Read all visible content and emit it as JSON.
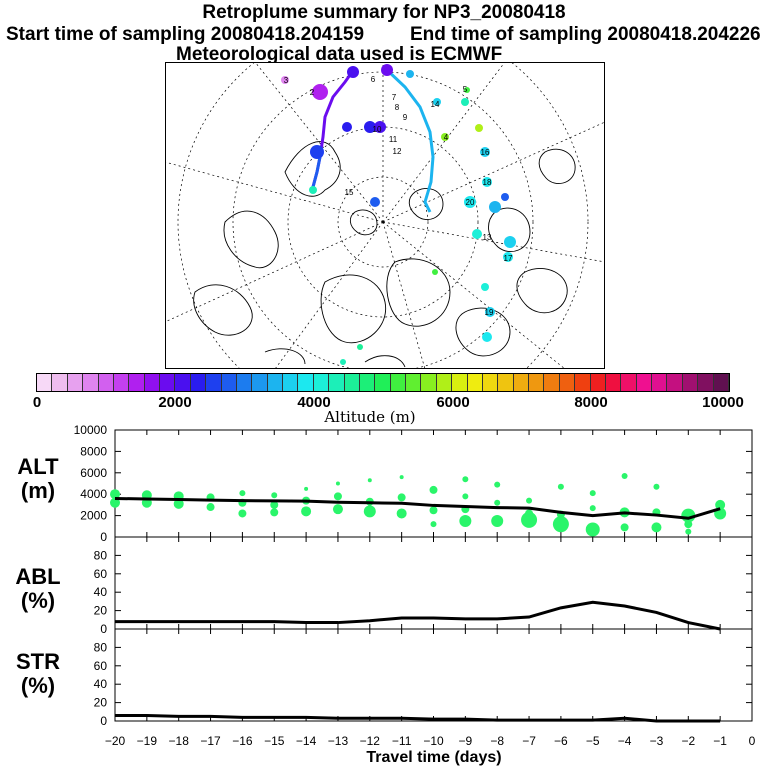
{
  "header": {
    "title": "Retroplume summary for NP3_20080418",
    "start": "Start time of sampling 20080418.204159",
    "end": "End time of sampling 20080418.204226",
    "met": "Meteorological data used is ECMWF"
  },
  "colorbar": {
    "title": "Altitude (m)",
    "labels": [
      "0",
      "2000",
      "4000",
      "6000",
      "8000",
      "10000"
    ],
    "colors": [
      "#f7d9f7",
      "#efbdef",
      "#e7a1ef",
      "#df84ef",
      "#d260ef",
      "#c440ef",
      "#b020ef",
      "#9010ef",
      "#6b0cef",
      "#4a10ef",
      "#2a1cef",
      "#1e40ef",
      "#1e5cef",
      "#1c7cef",
      "#1c98ef",
      "#1cb4ef",
      "#1cd0ef",
      "#1ce8ef",
      "#1cefd8",
      "#1cefb8",
      "#1cef98",
      "#1cef78",
      "#20ef58",
      "#40ef40",
      "#60ef30",
      "#88ef20",
      "#b0ef18",
      "#d8ef10",
      "#efec10",
      "#efd810",
      "#efc410",
      "#efac10",
      "#ef9810",
      "#ef7c10",
      "#ef6010",
      "#ef4010",
      "#ef2020",
      "#ef1040",
      "#ef1068",
      "#ef1090",
      "#e01090",
      "#c41080",
      "#a01070",
      "#801060",
      "#601050"
    ]
  },
  "chart_data": [
    {
      "type": "scatter",
      "panel": "ALT",
      "ylabel_line1": "ALT",
      "ylabel_line2": "(m)",
      "ylim": [
        0,
        10000
      ],
      "yticks": [
        "0",
        "2000",
        "4000",
        "6000",
        "8000",
        "10000"
      ],
      "xlim": [
        -20,
        0
      ],
      "line": {
        "x": [
          -20,
          -19,
          -18,
          -17,
          -16,
          -15,
          -14,
          -13,
          -12,
          -11,
          -10,
          -9,
          -8,
          -7,
          -6,
          -5,
          -4,
          -3,
          -2,
          -1
        ],
        "y": [
          3600,
          3550,
          3500,
          3450,
          3400,
          3380,
          3350,
          3250,
          3200,
          3150,
          2950,
          2850,
          2750,
          2700,
          2300,
          2000,
          2250,
          2050,
          1750,
          2650
        ]
      },
      "points": [
        {
          "x": -20,
          "y": 4000,
          "s": 5
        },
        {
          "x": -20,
          "y": 3200,
          "s": 5
        },
        {
          "x": -19,
          "y": 3900,
          "s": 5
        },
        {
          "x": -19,
          "y": 3200,
          "s": 5
        },
        {
          "x": -18,
          "y": 3800,
          "s": 5
        },
        {
          "x": -18,
          "y": 3100,
          "s": 5
        },
        {
          "x": -17,
          "y": 3700,
          "s": 4
        },
        {
          "x": -17,
          "y": 2800,
          "s": 4
        },
        {
          "x": -16,
          "y": 4100,
          "s": 3
        },
        {
          "x": -16,
          "y": 3200,
          "s": 4
        },
        {
          "x": -16,
          "y": 2200,
          "s": 4
        },
        {
          "x": -15,
          "y": 3900,
          "s": 3
        },
        {
          "x": -15,
          "y": 3000,
          "s": 4
        },
        {
          "x": -15,
          "y": 2300,
          "s": 4
        },
        {
          "x": -14,
          "y": 4500,
          "s": 2
        },
        {
          "x": -14,
          "y": 3400,
          "s": 4
        },
        {
          "x": -14,
          "y": 2400,
          "s": 5
        },
        {
          "x": -13,
          "y": 5000,
          "s": 2
        },
        {
          "x": -13,
          "y": 3800,
          "s": 4
        },
        {
          "x": -13,
          "y": 2600,
          "s": 5
        },
        {
          "x": -12,
          "y": 5300,
          "s": 2
        },
        {
          "x": -12,
          "y": 3300,
          "s": 4
        },
        {
          "x": -12,
          "y": 2400,
          "s": 6
        },
        {
          "x": -11,
          "y": 5600,
          "s": 2
        },
        {
          "x": -11,
          "y": 3700,
          "s": 4
        },
        {
          "x": -11,
          "y": 2200,
          "s": 5
        },
        {
          "x": -10,
          "y": 4400,
          "s": 4
        },
        {
          "x": -10,
          "y": 2500,
          "s": 4
        },
        {
          "x": -10,
          "y": 1200,
          "s": 3
        },
        {
          "x": -9,
          "y": 5400,
          "s": 3
        },
        {
          "x": -9,
          "y": 3800,
          "s": 3
        },
        {
          "x": -9,
          "y": 2600,
          "s": 4
        },
        {
          "x": -9,
          "y": 1500,
          "s": 6
        },
        {
          "x": -8,
          "y": 4900,
          "s": 3
        },
        {
          "x": -8,
          "y": 3200,
          "s": 3
        },
        {
          "x": -8,
          "y": 1500,
          "s": 6
        },
        {
          "x": -7,
          "y": 3400,
          "s": 3
        },
        {
          "x": -7,
          "y": 2200,
          "s": 4
        },
        {
          "x": -7,
          "y": 1600,
          "s": 8
        },
        {
          "x": -6,
          "y": 4700,
          "s": 3
        },
        {
          "x": -6,
          "y": 2100,
          "s": 4
        },
        {
          "x": -6,
          "y": 1200,
          "s": 8
        },
        {
          "x": -5,
          "y": 4100,
          "s": 3
        },
        {
          "x": -5,
          "y": 2700,
          "s": 3
        },
        {
          "x": -5,
          "y": 700,
          "s": 7
        },
        {
          "x": -4,
          "y": 5700,
          "s": 3
        },
        {
          "x": -4,
          "y": 2300,
          "s": 5
        },
        {
          "x": -4,
          "y": 900,
          "s": 4
        },
        {
          "x": -3,
          "y": 4700,
          "s": 3
        },
        {
          "x": -3,
          "y": 2300,
          "s": 4
        },
        {
          "x": -3,
          "y": 900,
          "s": 5
        },
        {
          "x": -2,
          "y": 2000,
          "s": 7
        },
        {
          "x": -2,
          "y": 1200,
          "s": 4
        },
        {
          "x": -2,
          "y": 500,
          "s": 3
        },
        {
          "x": -1,
          "y": 3000,
          "s": 5
        },
        {
          "x": -1,
          "y": 2200,
          "s": 6
        }
      ]
    },
    {
      "type": "line",
      "panel": "ABL",
      "ylabel_line1": "ABL",
      "ylabel_line2": "(%)",
      "ylim": [
        0,
        100
      ],
      "yticks": [
        "0",
        "20",
        "40",
        "60",
        "80"
      ],
      "xlim": [
        -20,
        0
      ],
      "x": [
        -20,
        -19,
        -18,
        -17,
        -16,
        -15,
        -14,
        -13,
        -12,
        -11,
        -10,
        -9,
        -8,
        -7,
        -6,
        -5,
        -4,
        -3,
        -2,
        -1
      ],
      "y": [
        8,
        8,
        8,
        8,
        8,
        8,
        7,
        7,
        9,
        12,
        12,
        11,
        11,
        13,
        23,
        29,
        25,
        18,
        7,
        0
      ]
    },
    {
      "type": "line",
      "panel": "STR",
      "ylabel_line1": "STR",
      "ylabel_line2": "(%)",
      "ylim": [
        0,
        100
      ],
      "yticks": [
        "0",
        "20",
        "40",
        "60",
        "80"
      ],
      "xlim": [
        -20,
        0
      ],
      "x": [
        -20,
        -19,
        -18,
        -17,
        -16,
        -15,
        -14,
        -13,
        -12,
        -11,
        -10,
        -9,
        -8,
        -7,
        -6,
        -5,
        -4,
        -3,
        -2,
        -1
      ],
      "y": [
        6,
        6,
        5,
        5,
        4,
        4,
        4,
        3,
        3,
        3,
        2,
        2,
        1,
        1,
        1,
        1,
        3,
        0,
        0,
        0
      ],
      "xlabel": "Travel time (days)",
      "xticks": [
        "−20",
        "−19",
        "−18",
        "−17",
        "−16",
        "−15",
        "−14",
        "−13",
        "−12",
        "−11",
        "−10",
        "−9",
        "−8",
        "−7",
        "−6",
        "−5",
        "−4",
        "−3",
        "−2",
        "−1",
        "0"
      ]
    }
  ],
  "map": {
    "labels": [
      {
        "t": "2",
        "c": "#000"
      },
      {
        "t": "3",
        "c": "#000"
      },
      {
        "t": "6",
        "c": "#000"
      },
      {
        "t": "7",
        "c": "#000"
      },
      {
        "t": "8",
        "c": "#000"
      },
      {
        "t": "9",
        "c": "#000"
      },
      {
        "t": "11",
        "c": "#000"
      },
      {
        "t": "12",
        "c": "#000"
      },
      {
        "t": "4",
        "c": "#000"
      },
      {
        "t": "16",
        "c": "#000"
      },
      {
        "t": "18",
        "c": "#000"
      },
      {
        "t": "20",
        "c": "#000"
      },
      {
        "t": "17",
        "c": "#000"
      },
      {
        "t": "19",
        "c": "#000"
      },
      {
        "t": "14",
        "c": "#000"
      },
      {
        "t": "10",
        "c": "#000"
      },
      {
        "t": "13",
        "c": "#000"
      },
      {
        "t": "15",
        "c": "#000"
      },
      {
        "t": "5",
        "c": "#000"
      }
    ]
  }
}
